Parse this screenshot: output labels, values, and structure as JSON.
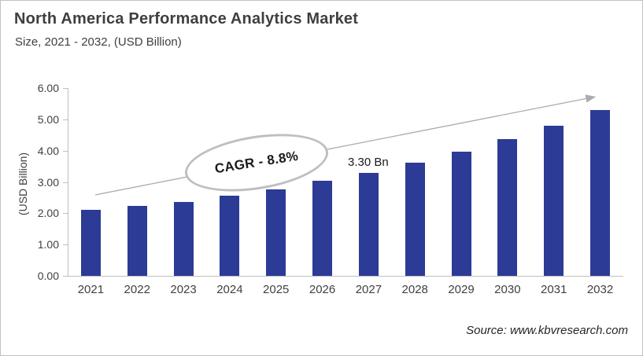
{
  "header": {
    "title": "North America Performance Analytics Market",
    "subtitle": "Size, 2021 - 2032, (USD Billion)"
  },
  "footer": {
    "source": "Source: www.kbvresearch.com"
  },
  "chart_data": {
    "type": "bar",
    "title": "North America Performance Analytics Market",
    "subtitle": "Size, 2021 - 2032, (USD Billion)",
    "xlabel": "",
    "ylabel": "(USD Billion)",
    "categories": [
      "2021",
      "2022",
      "2023",
      "2024",
      "2025",
      "2026",
      "2027",
      "2028",
      "2029",
      "2030",
      "2031",
      "2032"
    ],
    "values": [
      2.1,
      2.23,
      2.36,
      2.55,
      2.77,
      3.03,
      3.3,
      3.61,
      3.97,
      4.37,
      4.79,
      5.29
    ],
    "ylim": [
      0,
      6
    ],
    "ytick_step": 1,
    "ytick_labels": [
      "6.00",
      "5.00",
      "4.00",
      "3.00",
      "2.00",
      "1.00",
      "0.00"
    ],
    "grid": false,
    "legend": false,
    "annotations": {
      "cagr_label": "CAGR - 8.8%",
      "point_label": {
        "category": "2027",
        "text": "3.30 Bn"
      },
      "trend_arrow": true
    },
    "colors": {
      "bar": "#2c3b95",
      "axis_line": "#bfbfbf",
      "trend_arrow": "#acacac",
      "ellipse_stroke": "#bfbfbf",
      "text": "#404040"
    }
  }
}
